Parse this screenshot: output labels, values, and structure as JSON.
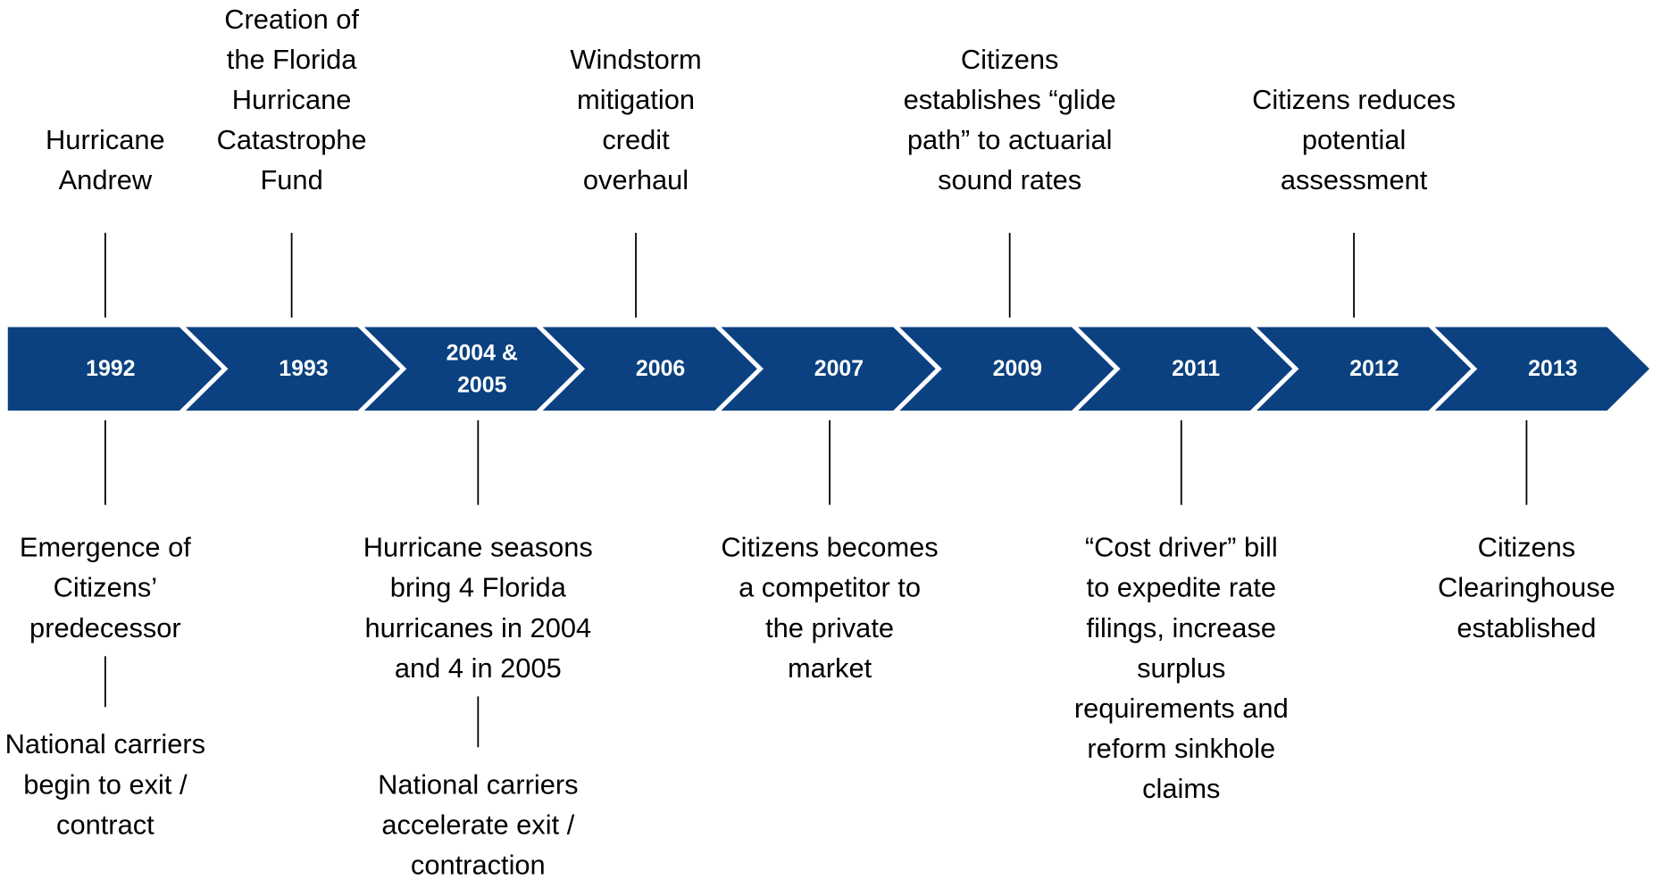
{
  "timeline": {
    "years": [
      "1992",
      "1993",
      "2004 & 2005",
      "2006",
      "2007",
      "2009",
      "2011",
      "2012",
      "2013"
    ]
  },
  "events_above": [
    {
      "lines": [
        "Hurricane",
        "Andrew"
      ]
    },
    {
      "lines": [
        "Creation of",
        "the Florida",
        "Hurricane",
        "Catastrophe",
        "Fund"
      ]
    },
    {
      "lines": [
        "Windstorm",
        "mitigation",
        "credit",
        "overhaul"
      ]
    },
    {
      "lines": [
        "Citizens",
        "establishes “glide",
        "path” to actuarial",
        "sound rates"
      ]
    },
    {
      "lines": [
        "Citizens reduces",
        "potential",
        "assessment"
      ]
    }
  ],
  "events_below": [
    {
      "lines": [
        "Emergence of",
        "Citizens’",
        "predecessor"
      ],
      "followup": {
        "lines": [
          "National carriers",
          "begin to exit /",
          "contract"
        ]
      }
    },
    {
      "lines": [
        "Hurricane seasons",
        "bring 4 Florida",
        "hurricanes in 2004",
        "and 4 in 2005"
      ],
      "followup": {
        "lines": [
          "National carriers",
          "accelerate exit /",
          "contraction"
        ]
      }
    },
    {
      "lines": [
        "Citizens becomes",
        "a competitor to",
        "the private",
        "market"
      ]
    },
    {
      "lines": [
        "“Cost driver” bill",
        "to expedite rate",
        "filings, increase",
        "surplus",
        "requirements and",
        "reform sinkhole",
        "claims"
      ]
    },
    {
      "lines": [
        "Citizens",
        "Clearinghouse",
        "established"
      ]
    }
  ]
}
